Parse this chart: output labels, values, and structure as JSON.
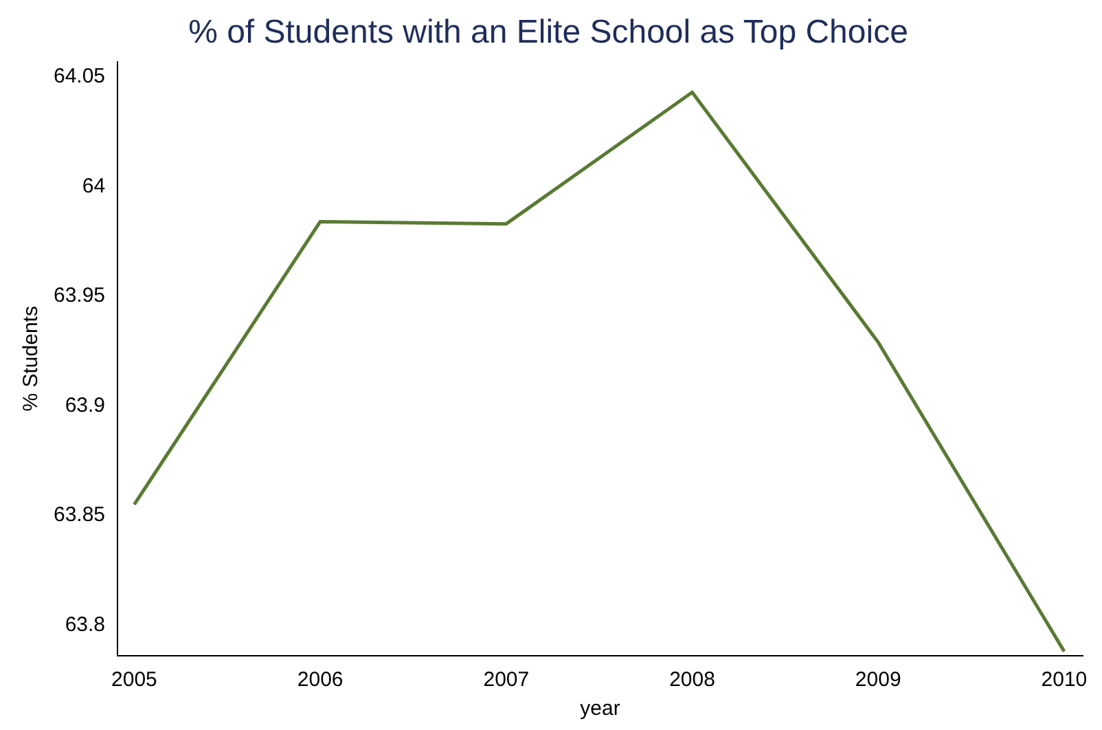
{
  "chart_data": {
    "type": "line",
    "title": "% of Students with an Elite School as Top Choice",
    "xlabel": "year",
    "ylabel": "% Students",
    "x": [
      2005,
      2006,
      2007,
      2008,
      2009,
      2010
    ],
    "series": [
      {
        "color": "#5a7a34",
        "values": [
          63.855,
          63.984,
          63.983,
          64.043,
          63.929,
          63.788
        ]
      }
    ],
    "xlim": [
      2004.91,
      2010.1
    ],
    "xticks": [
      2005,
      2006,
      2007,
      2008,
      2009,
      2010
    ],
    "ylim": [
      63.786,
      64.057
    ],
    "yticks": [
      63.8,
      63.85,
      63.9,
      63.95,
      64,
      64.05
    ],
    "grid": false,
    "legend": false,
    "marker": "none",
    "line_style": "solid"
  }
}
